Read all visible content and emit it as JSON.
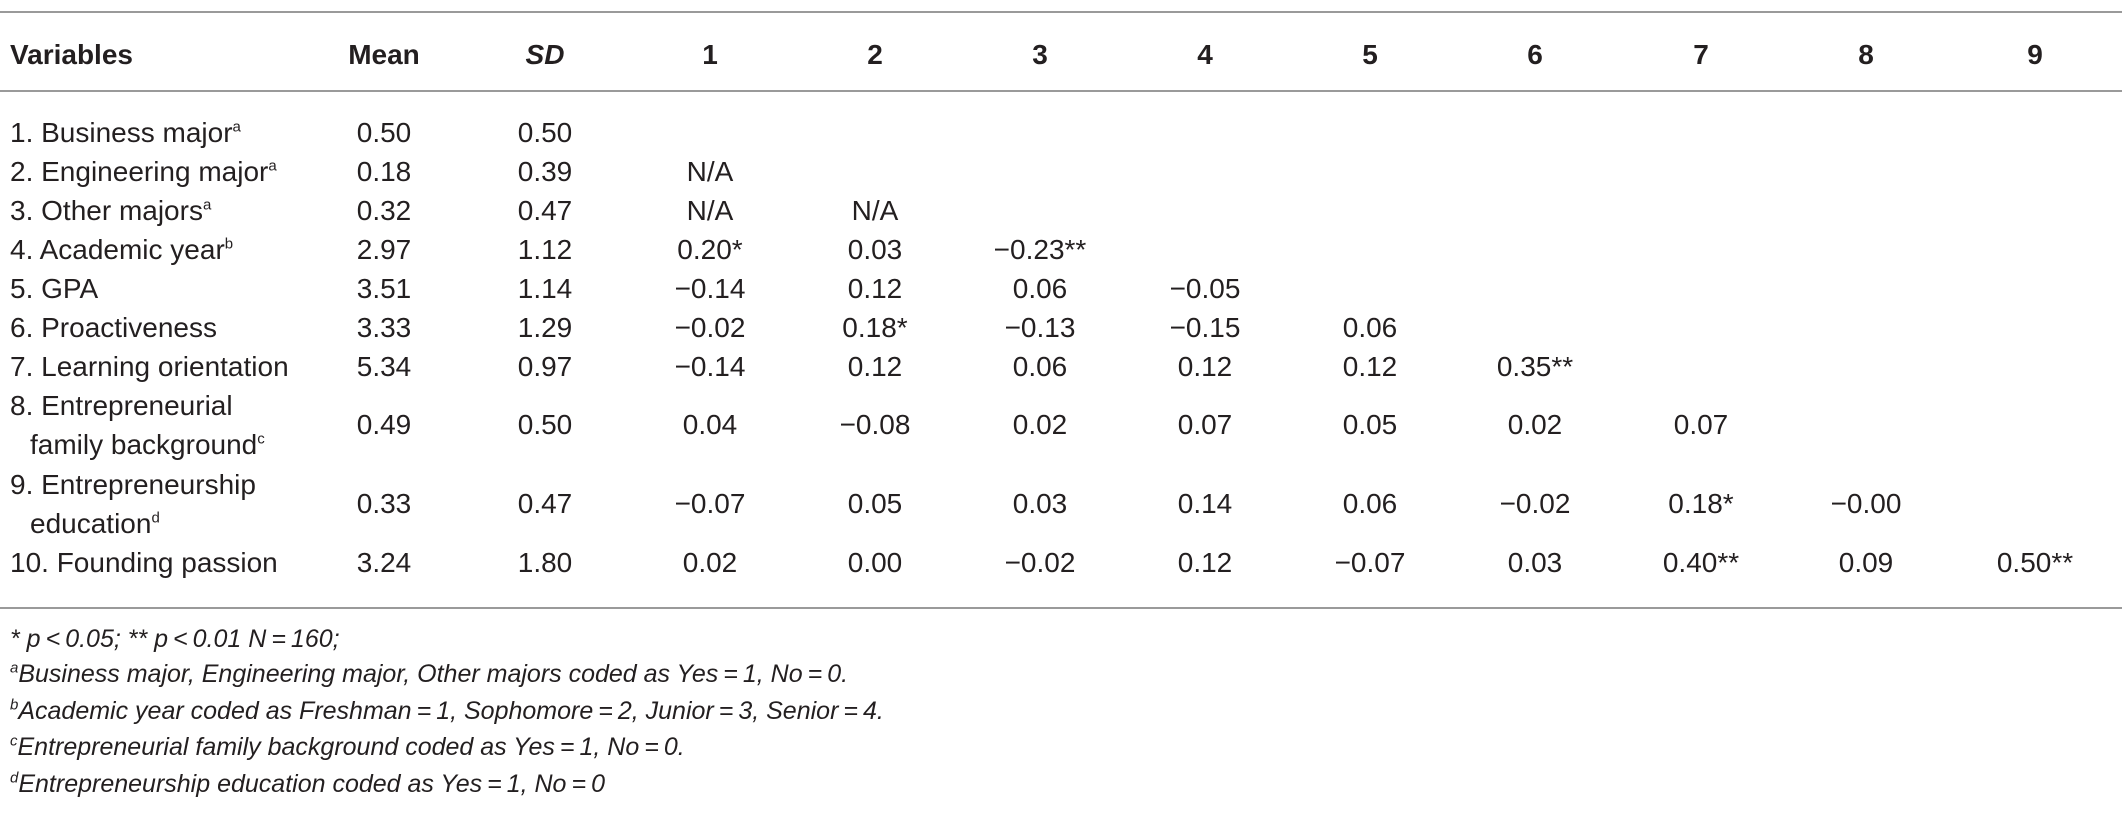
{
  "header": {
    "variables": "Variables",
    "mean": "Mean",
    "sd": "SD",
    "cols": [
      "1",
      "2",
      "3",
      "4",
      "5",
      "6",
      "7",
      "8",
      "9"
    ]
  },
  "rows": [
    {
      "label": "1. Business major",
      "sup": "a",
      "mean": "0.50",
      "sd": "0.50",
      "corr": []
    },
    {
      "label": "2. Engineering major",
      "sup": "a",
      "mean": "0.18",
      "sd": "0.39",
      "corr": [
        "N/A"
      ]
    },
    {
      "label": "3. Other majors",
      "sup": "a",
      "mean": "0.32",
      "sd": "0.47",
      "corr": [
        "N/A",
        "N/A"
      ]
    },
    {
      "label": "4. Academic year",
      "sup": "b",
      "mean": "2.97",
      "sd": "1.12",
      "corr": [
        "0.20*",
        "0.03",
        "−0.23**"
      ]
    },
    {
      "label": "5. GPA",
      "sup": "",
      "mean": "3.51",
      "sd": "1.14",
      "corr": [
        "−0.14",
        "0.12",
        "0.06",
        "−0.05"
      ]
    },
    {
      "label": "6. Proactiveness",
      "sup": "",
      "mean": "3.33",
      "sd": "1.29",
      "corr": [
        "−0.02",
        "0.18*",
        "−0.13",
        "−0.15",
        "0.06"
      ]
    },
    {
      "label": "7. Learning orientation",
      "sup": "",
      "mean": "5.34",
      "sd": "0.97",
      "corr": [
        "−0.14",
        "0.12",
        "0.06",
        "0.12",
        "0.12",
        "0.35**"
      ]
    },
    {
      "label1": "8. Entrepreneurial",
      "label2": "family background",
      "sup": "c",
      "mean": "0.49",
      "sd": "0.50",
      "corr": [
        "0.04",
        "−0.08",
        "0.02",
        "0.07",
        "0.05",
        "0.02",
        "0.07"
      ]
    },
    {
      "label1": "9. Entrepreneurship",
      "label2": "education",
      "sup": "d",
      "mean": "0.33",
      "sd": "0.47",
      "corr": [
        "−0.07",
        "0.05",
        "0.03",
        "0.14",
        "0.06",
        "−0.02",
        "0.18*",
        "−0.00"
      ]
    },
    {
      "label": "10. Founding passion",
      "sup": "",
      "mean": "3.24",
      "sd": "1.80",
      "corr": [
        "0.02",
        "0.00",
        "−0.02",
        "0.12",
        "−0.07",
        "0.03",
        "0.40**",
        "0.09",
        "0.50**"
      ]
    }
  ],
  "notes": [
    {
      "sup": "",
      "text": "* p < 0.05; ** p < 0.01 N = 160;"
    },
    {
      "sup": "a",
      "text": "Business major, Engineering major, Other majors coded as Yes = 1, No = 0."
    },
    {
      "sup": "b",
      "text": "Academic year coded as Freshman = 1, Sophomore = 2, Junior = 3, Senior = 4."
    },
    {
      "sup": "c",
      "text": "Entrepreneurial family background coded as Yes = 1, No = 0."
    },
    {
      "sup": "d",
      "text": "Entrepreneurship education coded as Yes = 1, No = 0"
    }
  ]
}
